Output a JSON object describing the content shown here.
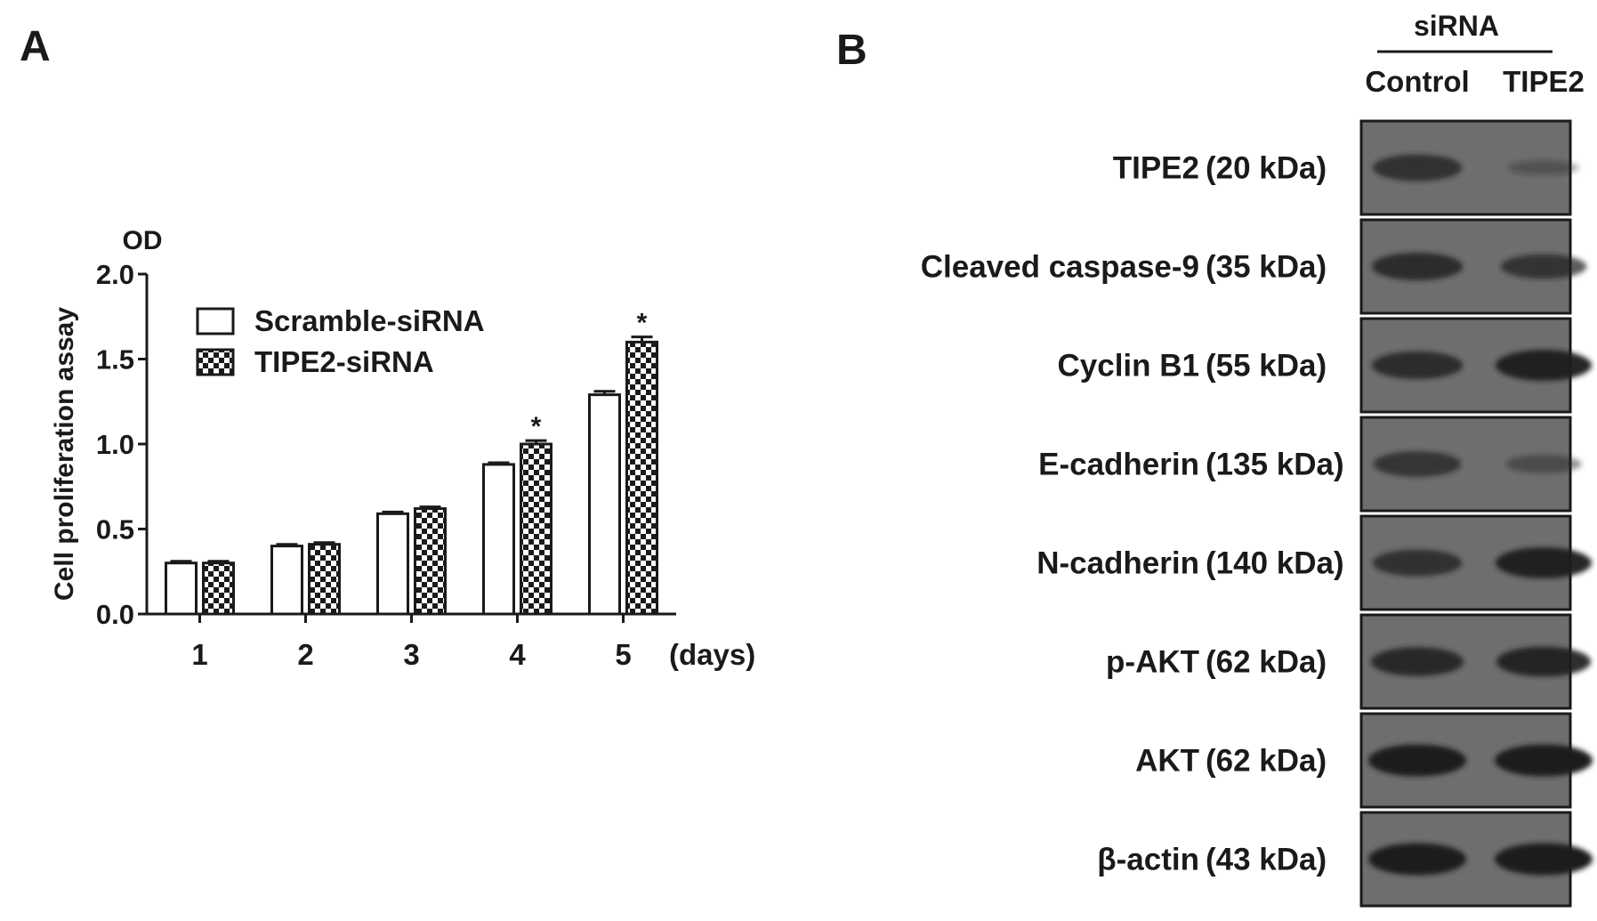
{
  "colors": {
    "ink": "#1a1a1a",
    "blot_bg": "#6e6e6e",
    "band": "#1f1f1f",
    "open_bar": "#ffffff"
  },
  "panel_a": {
    "panel_letter": "A",
    "ylabel_top": "OD",
    "ylabel": "Cell proliferation assay",
    "x_unit": "(days)",
    "yticks": [
      "0.0",
      "0.5",
      "1.0",
      "1.5",
      "2.0"
    ],
    "significance_marker": "*"
  },
  "chart_data": {
    "type": "bar",
    "title": "",
    "xlabel": "(days)",
    "ylabel": "Cell proliferation assay",
    "ylim": [
      0,
      2.0
    ],
    "categories": [
      "1",
      "2",
      "3",
      "4",
      "5"
    ],
    "series": [
      {
        "name": "Scramble-siRNA",
        "pattern": "open",
        "values": [
          0.3,
          0.4,
          0.59,
          0.88,
          1.29
        ],
        "errors": [
          0.01,
          0.01,
          0.01,
          0.01,
          0.02
        ]
      },
      {
        "name": "TIPE2-siRNA",
        "pattern": "checkered",
        "values": [
          0.3,
          0.41,
          0.62,
          1.0,
          1.6
        ],
        "errors": [
          0.01,
          0.01,
          0.01,
          0.02,
          0.03
        ]
      }
    ],
    "significant": [
      false,
      false,
      false,
      true,
      true
    ],
    "legend": "top-left",
    "grid": false
  },
  "panel_b": {
    "panel_letter": "B",
    "group_header": "siRNA",
    "lane_labels": [
      "Control",
      "TIPE2"
    ],
    "blots": [
      {
        "label": "TIPE2",
        "size": "(20 kDa)",
        "control": 0.75,
        "tipe2": 0.2
      },
      {
        "label": "Cleaved caspase-9",
        "size": "(35 kDa)",
        "control": 0.8,
        "tipe2": 0.65
      },
      {
        "label": "Cyclin B1",
        "size": "(55 kDa)",
        "control": 0.8,
        "tipe2": 0.95
      },
      {
        "label": "E-cadherin",
        "size": "(135 kDa)",
        "control": 0.7,
        "tipe2": 0.35
      },
      {
        "label": "N-cadherin",
        "size": "(140 kDa)",
        "control": 0.75,
        "tipe2": 0.95
      },
      {
        "label": "p-AKT",
        "size": "(62 kDa)",
        "control": 0.85,
        "tipe2": 0.9
      },
      {
        "label": "AKT",
        "size": "(62 kDa)",
        "control": 1.0,
        "tipe2": 1.0
      },
      {
        "label": "β-actin",
        "size": "(43 kDa)",
        "control": 1.0,
        "tipe2": 1.0
      }
    ]
  }
}
